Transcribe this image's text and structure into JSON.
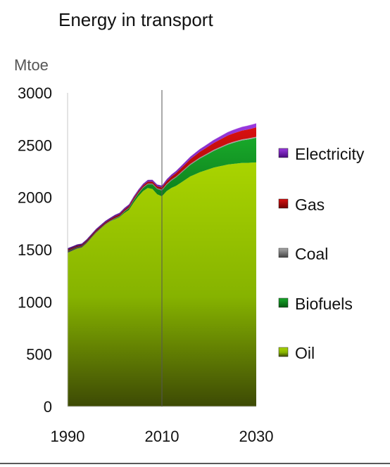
{
  "chart_data": {
    "type": "area",
    "stacked": true,
    "title": "Energy in transport",
    "ylabel": "Mtoe",
    "xlabel": "",
    "xlim": [
      1990,
      2030
    ],
    "ylim": [
      0,
      3000
    ],
    "x_ticks": [
      1990,
      2010,
      2030
    ],
    "y_ticks": [
      0,
      500,
      1000,
      1500,
      2000,
      2500,
      3000
    ],
    "divider_x": 2010,
    "grid": false,
    "legend_position": "right",
    "legend_order": [
      "Electricity",
      "Gas",
      "Coal",
      "Biofuels",
      "Oil"
    ],
    "x": [
      1990,
      1991,
      1992,
      1993,
      1994,
      1995,
      1996,
      1997,
      1998,
      1999,
      2000,
      2001,
      2002,
      2003,
      2004,
      2005,
      2006,
      2007,
      2008,
      2009,
      2010,
      2011,
      2012,
      2013,
      2014,
      2015,
      2016,
      2017,
      2018,
      2019,
      2020,
      2021,
      2022,
      2023,
      2024,
      2025,
      2026,
      2027,
      2028,
      2029,
      2030
    ],
    "series": [
      {
        "name": "Oil",
        "color": "#8fbf00",
        "values": [
          1470,
          1490,
          1510,
          1520,
          1560,
          1610,
          1660,
          1700,
          1740,
          1770,
          1790,
          1810,
          1850,
          1880,
          1950,
          2010,
          2060,
          2090,
          2080,
          2030,
          2010,
          2060,
          2090,
          2110,
          2140,
          2170,
          2200,
          2220,
          2240,
          2255,
          2270,
          2285,
          2295,
          2305,
          2315,
          2320,
          2325,
          2330,
          2330,
          2332,
          2335
        ]
      },
      {
        "name": "Biofuels",
        "color": "#0a8a1a",
        "values": [
          0,
          0,
          0,
          0,
          0,
          0,
          0,
          0,
          0,
          0,
          5,
          5,
          10,
          15,
          20,
          25,
          30,
          35,
          45,
          50,
          55,
          60,
          70,
          80,
          90,
          100,
          110,
          120,
          130,
          140,
          150,
          160,
          170,
          180,
          190,
          200,
          208,
          215,
          222,
          228,
          235
        ]
      },
      {
        "name": "Coal",
        "color": "#666666",
        "values": [
          20,
          18,
          16,
          15,
          14,
          12,
          11,
          10,
          9,
          8,
          8,
          8,
          8,
          8,
          8,
          8,
          8,
          8,
          8,
          8,
          10,
          10,
          10,
          10,
          10,
          10,
          10,
          10,
          10,
          10,
          10,
          10,
          10,
          10,
          10,
          10,
          10,
          10,
          10,
          10,
          10
        ]
      },
      {
        "name": "Gas",
        "color": "#b00000",
        "values": [
          10,
          10,
          10,
          10,
          10,
          12,
          12,
          12,
          12,
          12,
          14,
          14,
          14,
          15,
          15,
          16,
          16,
          17,
          18,
          18,
          20,
          24,
          28,
          32,
          36,
          40,
          45,
          50,
          55,
          58,
          62,
          66,
          70,
          74,
          78,
          80,
          82,
          84,
          86,
          88,
          90
        ]
      },
      {
        "name": "Electricity",
        "color": "#6a1ab0",
        "values": [
          15,
          15,
          15,
          15,
          15,
          15,
          16,
          16,
          16,
          16,
          17,
          17,
          17,
          17,
          18,
          18,
          18,
          19,
          19,
          19,
          20,
          21,
          22,
          23,
          24,
          25,
          26,
          27,
          28,
          29,
          30,
          31,
          32,
          33,
          34,
          35,
          36,
          37,
          38,
          39,
          40
        ]
      }
    ]
  }
}
